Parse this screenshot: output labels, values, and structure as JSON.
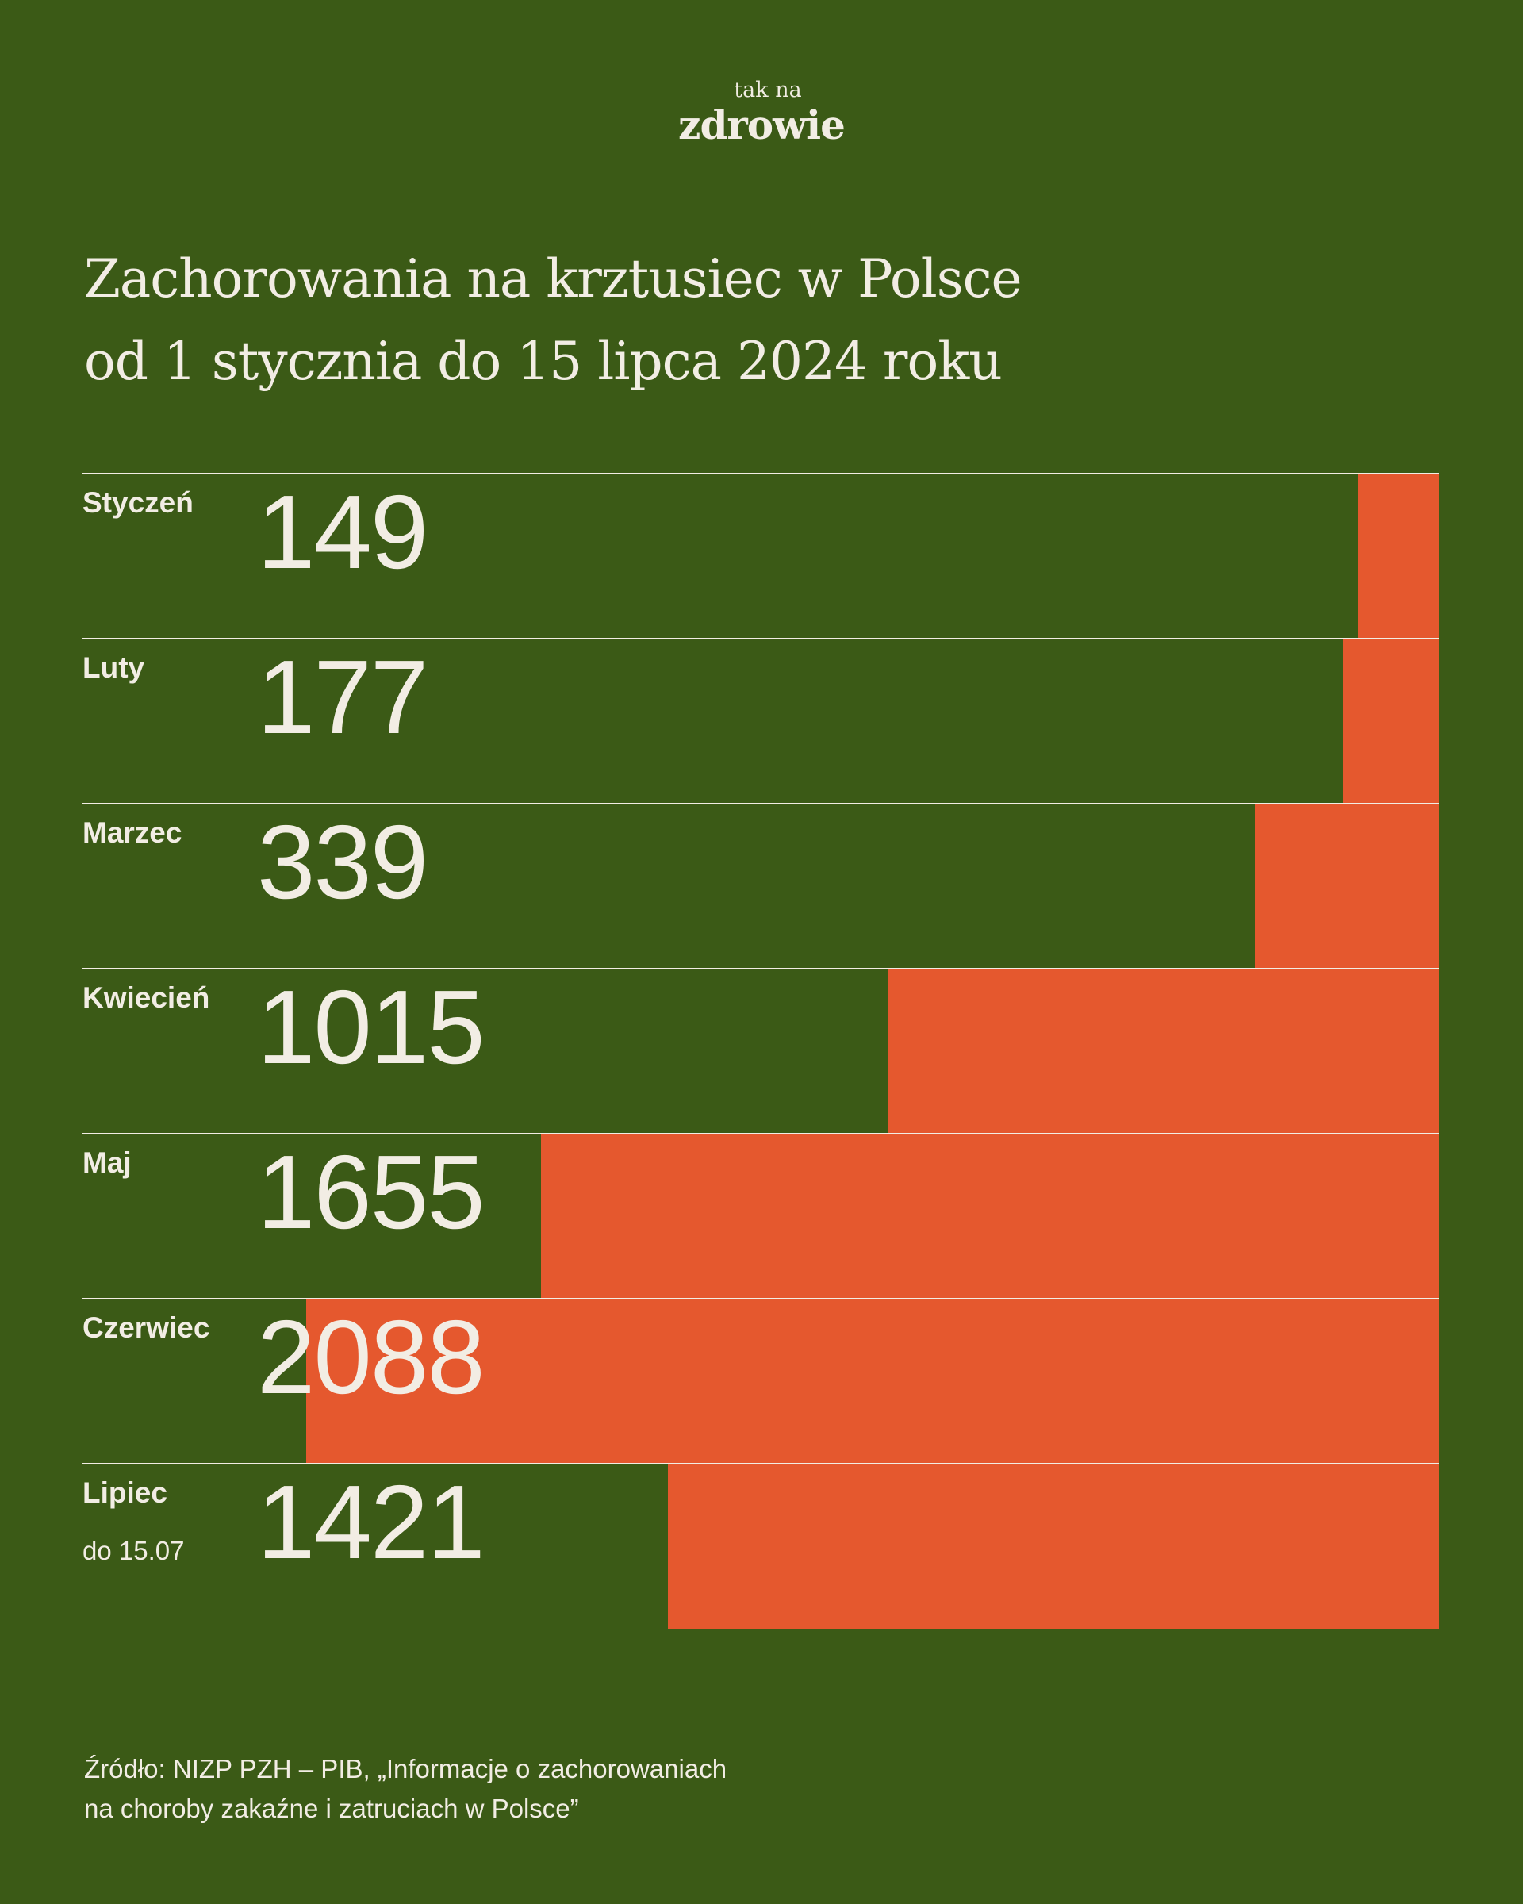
{
  "brand": {
    "small": "tak na",
    "big": "zdrowie"
  },
  "title_lines": [
    "Zachorowania na krztusiec w Polsce",
    "od 1 stycznia do 15 lipca 2024 roku"
  ],
  "source_lines": [
    "Źródło: NIZP PZH – PIB, „Informacje o zachorowaniach",
    "na choroby zakaźne i zatruciach w Polsce”"
  ],
  "colors": {
    "background": "#3b5a16",
    "bar": "#e5582e",
    "text": "#f2ede4"
  },
  "chart_data": {
    "type": "bar",
    "orientation": "horizontal",
    "bar_anchor": "right",
    "title": "Zachorowania na krztusiec w Polsce od 1 stycznia do 15 lipca 2024 roku",
    "categories": [
      "Styczeń",
      "Luty",
      "Marzec",
      "Kwiecień",
      "Maj",
      "Czerwiec",
      "Lipiec"
    ],
    "category_notes": [
      "",
      "",
      "",
      "",
      "",
      "",
      "do 15.07"
    ],
    "values": [
      149,
      177,
      339,
      1015,
      1655,
      2088,
      1421
    ],
    "xlim": [
      0,
      2500
    ],
    "grid": false,
    "legend": "none"
  }
}
